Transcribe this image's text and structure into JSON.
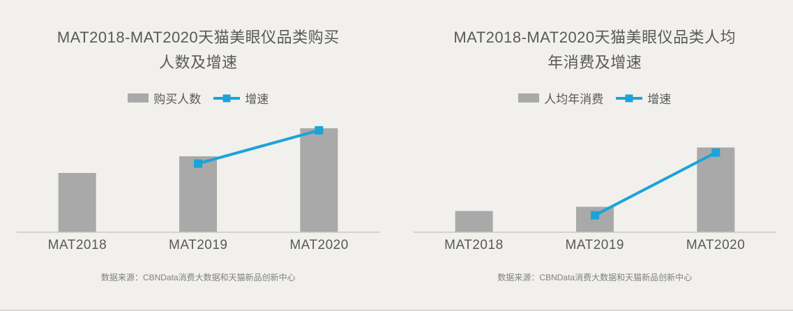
{
  "page": {
    "background": "#f1f0ed",
    "text_color": "#595959",
    "source_color": "#808080"
  },
  "chart_data": [
    {
      "type": "bar",
      "title": "MAT2018-MAT2020天猫美眼仪品类购买人数及增速",
      "title_line1": "MAT2018-MAT2020天猫美眼仪品类购买",
      "title_line2": "人数及增速",
      "xlabel": "",
      "ylabel": "",
      "categories": [
        "MAT2018",
        "MAT2019",
        "MAT2020"
      ],
      "series": [
        {
          "name": "购买人数",
          "type": "bar",
          "values": [
            57,
            73,
            100
          ]
        },
        {
          "name": "增速",
          "type": "line",
          "values": [
            null,
            66,
            98
          ]
        }
      ],
      "ylim": [
        0,
        110
      ],
      "grid": false,
      "legend_position": "top",
      "colors": {
        "bar": "#a9a9a9",
        "line": "#1ba3da"
      },
      "source": "数据来源：CBNData消费大数据和天猫新品创新中心"
    },
    {
      "type": "bar",
      "title": "MAT2018-MAT2020天猫美眼仪品类人均年消费及增速",
      "title_line1": "MAT2018-MAT2020天猫美眼仪品类人均",
      "title_line2": "年消费及增速",
      "xlabel": "",
      "ylabel": "",
      "categories": [
        "MAT2018",
        "MAT2019",
        "MAT2020"
      ],
      "series": [
        {
          "name": "人均年消费",
          "type": "bar",
          "values": [
            25,
            30,
            100
          ]
        },
        {
          "name": "增速",
          "type": "line",
          "values": [
            null,
            20,
            94
          ]
        }
      ],
      "ylim": [
        0,
        135
      ],
      "grid": false,
      "legend_position": "top",
      "colors": {
        "bar": "#a9a9a9",
        "line": "#1ba3da"
      },
      "source": "数据来源：CBNData消费大数据和天猫新品创新中心"
    }
  ]
}
